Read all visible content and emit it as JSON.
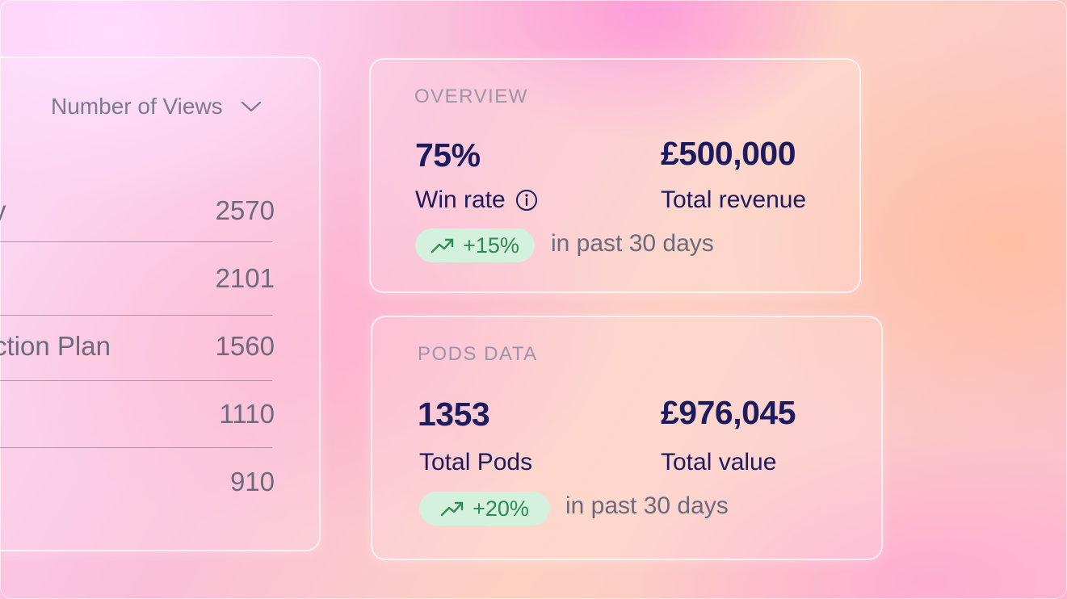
{
  "views": {
    "metric_label": "Number of Views",
    "rows": [
      {
        "label": "y",
        "value": "2570"
      },
      {
        "label": "",
        "value": "2101"
      },
      {
        "label": "Action Plan",
        "value": "1560"
      },
      {
        "label": "",
        "value": "1110"
      },
      {
        "label": "",
        "value": "910"
      }
    ]
  },
  "overview": {
    "title": "OVERVIEW",
    "win_rate_value": "75%",
    "win_rate_label": "Win rate",
    "revenue_value": "£500,000",
    "revenue_label": "Total revenue",
    "change": "+15%",
    "period": "in past 30 days"
  },
  "pods": {
    "title": "PODS DATA",
    "pods_value": "1353",
    "pods_label": "Total Pods",
    "value_value": "£976,045",
    "value_label": "Total value",
    "change": "+20%",
    "period": "in past 30 days"
  },
  "colors": {
    "navy": "#1e1a5e",
    "badge_bg": "#d3f1dc",
    "badge_text": "#2e8a55"
  },
  "icons": [
    "chevron-down-icon",
    "info-icon",
    "trend-up-icon"
  ]
}
